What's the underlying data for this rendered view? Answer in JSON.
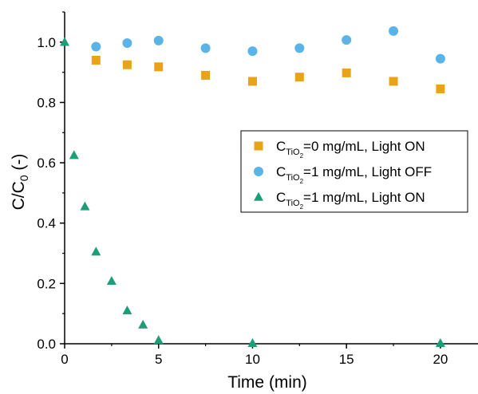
{
  "chart_data": {
    "type": "scatter",
    "title": "",
    "xlabel": "Time (min)",
    "ylabel": "C/C",
    "ylabel_subscript": "0",
    "ylabel_suffix": " (-)",
    "xlim": [
      0,
      22
    ],
    "ylim": [
      0,
      1.1
    ],
    "xticks": [
      0,
      5,
      10,
      15,
      20
    ],
    "xtick_labels": [
      "0",
      "5",
      "10",
      "15",
      "20"
    ],
    "yticks": [
      0.0,
      0.2,
      0.4,
      0.6,
      0.8,
      1.0
    ],
    "ytick_labels": [
      "0.0",
      "0.2",
      "0.4",
      "0.6",
      "0.8",
      "1.0"
    ],
    "grid": false,
    "legend_position": "center-right",
    "series": [
      {
        "marker": "square",
        "color": "#E8A317",
        "legend": {
          "prefix": "C",
          "sub": "TiO",
          "subsub": "2",
          "suffix": "=0 mg/mL, Light ON"
        },
        "x": [
          1.67,
          3.33,
          5,
          7.5,
          10,
          12.5,
          15,
          17.5,
          20
        ],
        "y": [
          0.94,
          0.925,
          0.918,
          0.89,
          0.87,
          0.884,
          0.898,
          0.87,
          0.845
        ]
      },
      {
        "marker": "circle",
        "color": "#5AB4E8",
        "legend": {
          "prefix": "C",
          "sub": "TiO",
          "subsub": "2",
          "suffix": "=1 mg/mL, Light OFF"
        },
        "x": [
          1.67,
          3.33,
          5,
          7.5,
          10,
          12.5,
          15,
          17.5,
          20
        ],
        "y": [
          0.985,
          0.997,
          1.005,
          0.98,
          0.97,
          0.98,
          1.007,
          1.037,
          0.945
        ]
      },
      {
        "marker": "triangle",
        "color": "#1E9E78",
        "legend": {
          "prefix": "C",
          "sub": "TiO",
          "subsub": "2",
          "suffix": "=1 mg/mL, Light ON"
        },
        "x": [
          0,
          0.5,
          1.08,
          1.67,
          2.5,
          3.33,
          4.17,
          5,
          10,
          20
        ],
        "y": [
          1.0,
          0.625,
          0.455,
          0.305,
          0.208,
          0.11,
          0.063,
          0.012,
          0.002,
          0.002
        ]
      }
    ]
  }
}
